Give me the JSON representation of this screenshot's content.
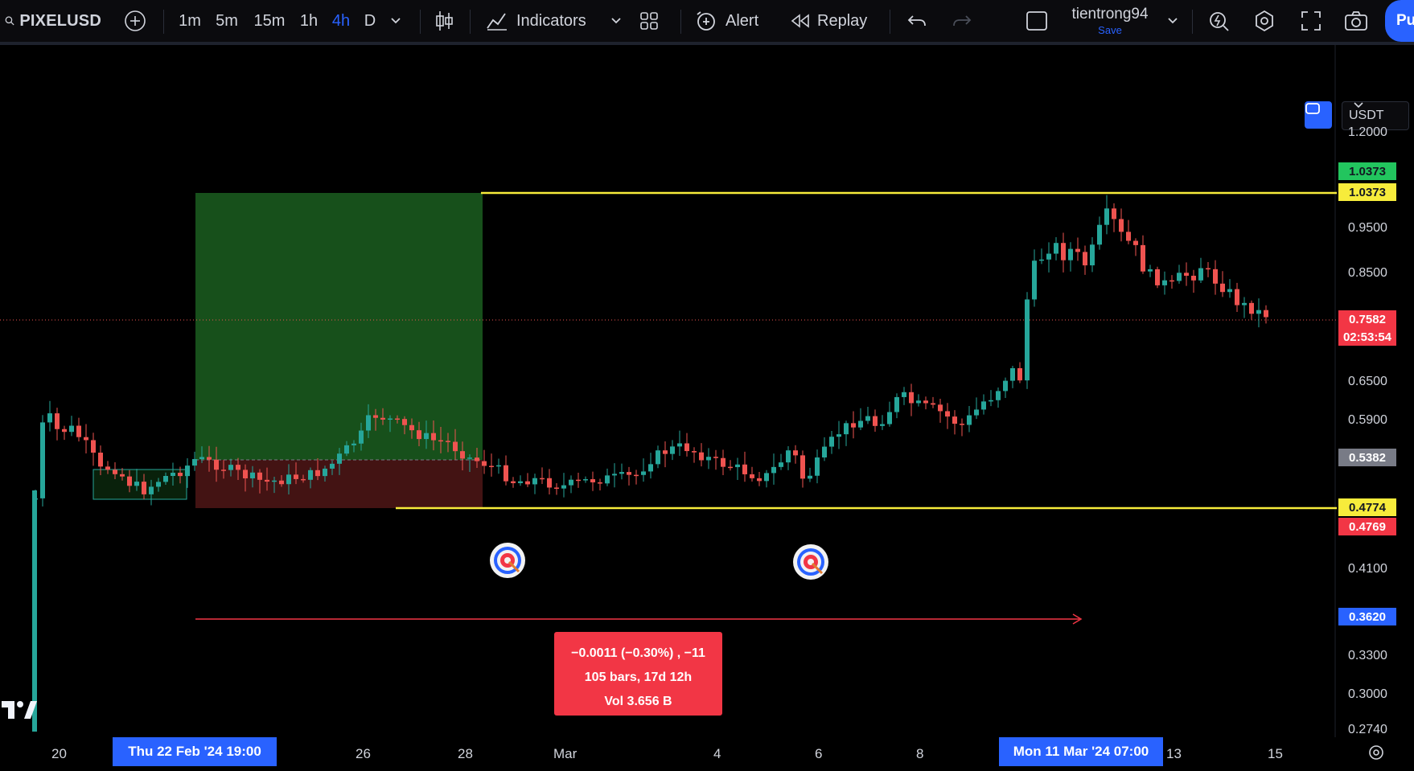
{
  "toolbar": {
    "symbol": "PIXELUSD",
    "timeframes": [
      "1m",
      "5m",
      "15m",
      "1h",
      "4h",
      "D"
    ],
    "active_timeframe": "4h",
    "indicators_label": "Indicators",
    "alert_label": "Alert",
    "replay_label": "Replay",
    "username": "tientrong94",
    "save_label": "Save",
    "publish_label": "Pu"
  },
  "currency_select": "USDT",
  "price_axis": {
    "ticks": [
      "1.2000",
      "0.9500",
      "0.8500",
      "0.6500",
      "0.5900",
      "0.4100",
      "0.3300",
      "0.3000",
      "0.2740"
    ],
    "labels": {
      "target_green": "1.0373",
      "target_line": "1.0373",
      "current_price": "0.7582",
      "countdown": "02:53:54",
      "entry": "0.5382",
      "support_line": "0.4774",
      "stop": "0.4769",
      "cursor_price": "0.3620"
    }
  },
  "measure": {
    "line1": "−0.0011 (−0.30%) , −11",
    "line2": "105 bars, 17d 12h",
    "line3": "Vol 3.656 B"
  },
  "time_axis": {
    "ticks": [
      "20",
      "26",
      "28",
      "Mar",
      "4",
      "6",
      "8",
      "13",
      "15"
    ],
    "highlight_start": "Thu 22 Feb '24   19:00",
    "highlight_end": "Mon 11 Mar '24   07:00"
  },
  "colors": {
    "up": "#26a69a",
    "down": "#ef5350",
    "level_line": "#f7ec3b",
    "accent": "#2962ff",
    "profit_zone": "#1b5e20",
    "loss_zone": "#4a1515"
  }
}
